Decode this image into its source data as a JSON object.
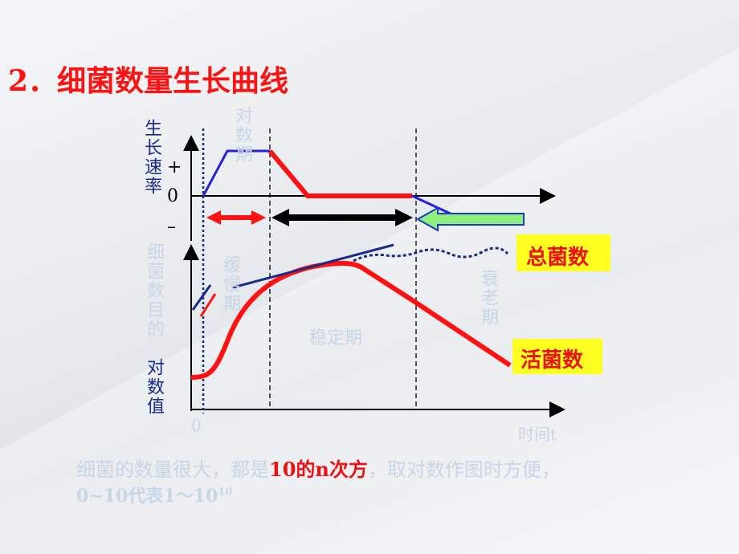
{
  "title": "2．细菌数量生长曲线",
  "top_axis": {
    "label": "生长速率",
    "plus": "+",
    "zero": "0",
    "minus": "–"
  },
  "phases": {
    "log": "对数期",
    "lag": "缓慢期",
    "stationary": "稳定期",
    "decline": "衰老期"
  },
  "bottom_axis": {
    "label_part1": "细菌数目的",
    "label_part2": "对数值",
    "origin": "0",
    "x_label": "时间t"
  },
  "legend": {
    "total": "总菌数",
    "viable": "活菌数"
  },
  "note": {
    "line1": [
      "细菌的数量很大，都是",
      "10的n次方",
      "，取对数作图时方便，"
    ],
    "line2": "0~10代表1～10",
    "line2_sup": "10"
  }
}
